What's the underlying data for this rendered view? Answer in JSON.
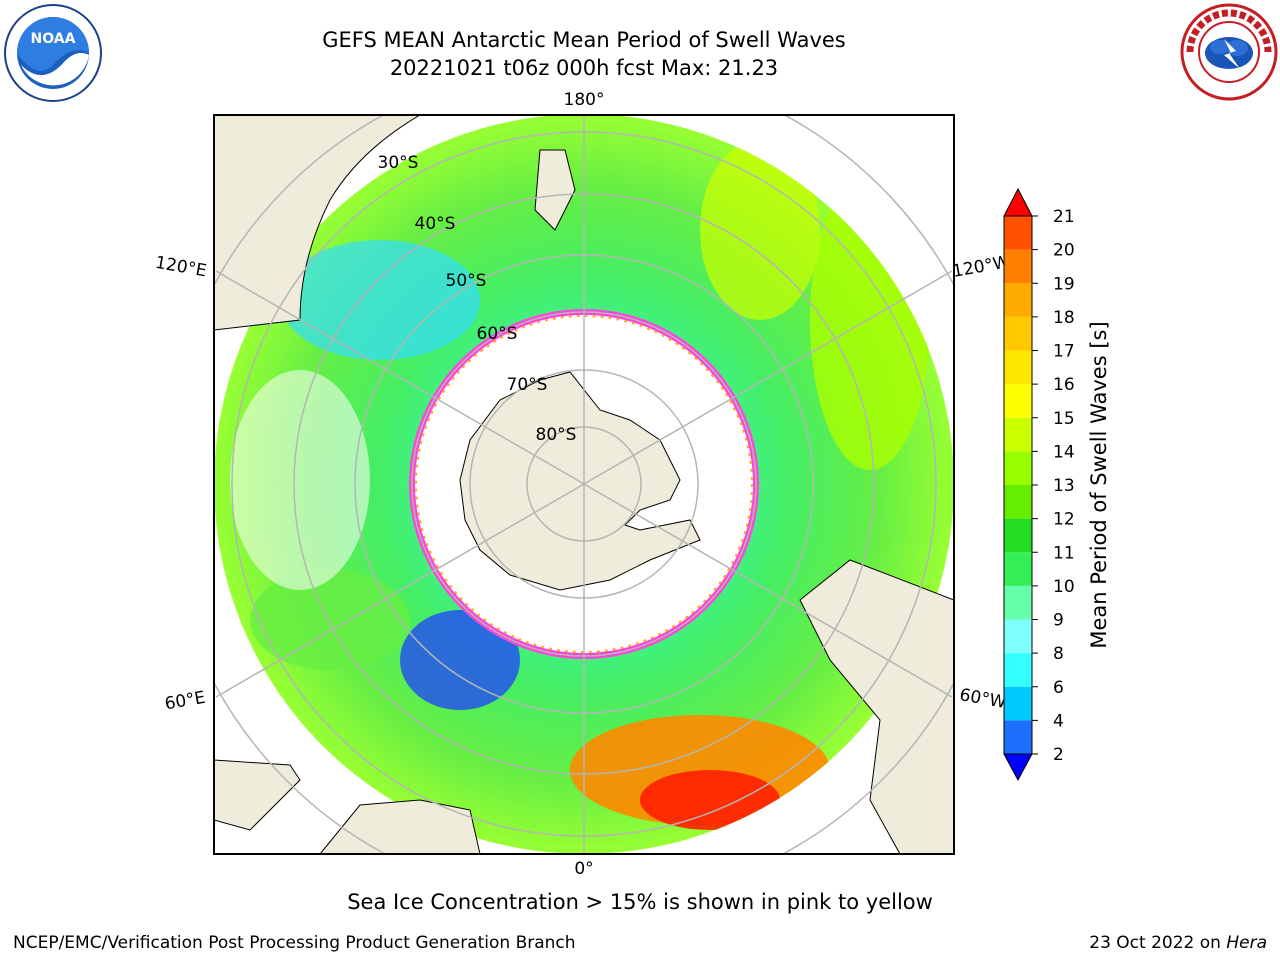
{
  "header": {
    "title_line1": "GEFS MEAN Antarctic Mean Period of Swell Waves",
    "title_line2": "20221021 t06z 000h fcst   Max: 21.23"
  },
  "logos": {
    "left_name": "NOAA",
    "right_name": "NATIONAL WEATHER SERVICE"
  },
  "map": {
    "lon_labels": {
      "top": "180°",
      "bottom": "0°",
      "left_upper": "120°E",
      "left_lower": "60°E",
      "right_upper": "120°W",
      "right_lower": "60°W"
    },
    "lat_labels": [
      "30°S",
      "40°S",
      "50°S",
      "60°S",
      "70°S",
      "80°S"
    ],
    "land_color": "#efecdc",
    "ice_edge_color": "#ff44dd"
  },
  "colorbar": {
    "label": "Mean Period of Swell Waves [s]",
    "ticks": [
      "2",
      "4",
      "6",
      "8",
      "9",
      "10",
      "11",
      "12",
      "13",
      "14",
      "15",
      "16",
      "17",
      "18",
      "19",
      "20",
      "21"
    ],
    "colors": [
      "#1f6fff",
      "#00c8ff",
      "#33ffff",
      "#80ffff",
      "#66ffaa",
      "#33ee55",
      "#22dd22",
      "#66ee00",
      "#99ff00",
      "#ccff00",
      "#ffff00",
      "#ffe800",
      "#ffc800",
      "#ffaa00",
      "#ff8000",
      "#ff5000",
      "#ff2000"
    ],
    "under_color": "#0000ff",
    "over_color": "#ff0000"
  },
  "note": "Sea Ice Concentration > 15% is shown in pink to yellow",
  "footer": {
    "left": "NCEP/EMC/Verification Post Processing Product Generation Branch",
    "right_prefix": "23 Oct 2022 on ",
    "right_italic": "Hera"
  }
}
